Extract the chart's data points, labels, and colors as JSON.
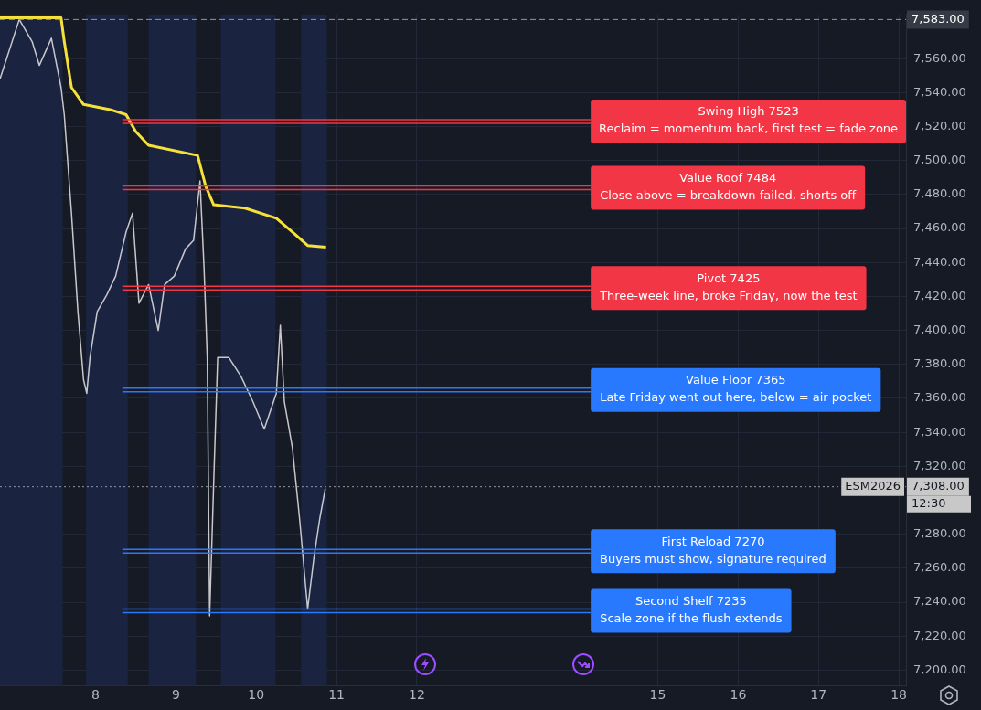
{
  "chart_data": {
    "type": "line",
    "marker": "none",
    "line_style": "solid",
    "grid": true,
    "legend": false,
    "xlim": [
      6.81,
      18.09
    ],
    "xticks": [
      8,
      9,
      10,
      11,
      12,
      15,
      16,
      17,
      18
    ],
    "ylim": [
      7191,
      7586
    ],
    "yticks": [
      {
        "value": 7200,
        "label": "7,200.00"
      },
      {
        "value": 7220,
        "label": "7,220.00"
      },
      {
        "value": 7240,
        "label": "7,240.00"
      },
      {
        "value": 7260,
        "label": "7,260.00"
      },
      {
        "value": 7280,
        "label": "7,280.00"
      },
      {
        "value": 7320,
        "label": "7,320.00"
      },
      {
        "value": 7340,
        "label": "7,340.00"
      },
      {
        "value": 7360,
        "label": "7,360.00"
      },
      {
        "value": 7380,
        "label": "7,380.00"
      },
      {
        "value": 7400,
        "label": "7,400.00"
      },
      {
        "value": 7420,
        "label": "7,420.00"
      },
      {
        "value": 7440,
        "label": "7,440.00"
      },
      {
        "value": 7460,
        "label": "7,460.00"
      },
      {
        "value": 7480,
        "label": "7,480.00"
      },
      {
        "value": 7500,
        "label": "7,500.00"
      },
      {
        "value": 7520,
        "label": "7,520.00"
      },
      {
        "value": 7540,
        "label": "7,540.00"
      },
      {
        "value": 7560,
        "label": "7,560.00"
      }
    ],
    "series": [
      {
        "color": "#c8c8cc",
        "x": [
          6.81,
          7.05,
          7.21,
          7.3,
          7.45,
          7.57,
          7.61,
          7.7,
          7.78,
          7.85,
          7.89,
          7.93,
          8.02,
          8.14,
          8.25,
          8.38,
          8.46,
          8.54,
          8.66,
          8.78,
          8.86,
          8.98,
          9.12,
          9.22,
          9.3,
          9.35,
          9.39,
          9.42,
          9.47,
          9.52,
          9.66,
          9.81,
          9.96,
          10.1,
          10.25,
          10.3,
          10.35,
          10.45,
          10.54,
          10.64,
          10.72,
          10.79,
          10.86
        ],
        "values": [
          7548,
          7583,
          7570,
          7556,
          7572,
          7543,
          7527,
          7469,
          7411,
          7371,
          7363,
          7384,
          7411,
          7421,
          7432,
          7458,
          7469,
          7416,
          7427,
          7400,
          7427,
          7432,
          7448,
          7453,
          7488,
          7437,
          7384,
          7232,
          7310,
          7384,
          7384,
          7373,
          7358,
          7342,
          7363,
          7403,
          7358,
          7331,
          7289,
          7236,
          7267,
          7289,
          7307
        ]
      },
      {
        "color": "#f5e13a",
        "x": [
          6.81,
          7.57,
          7.61,
          7.7,
          7.85,
          8.18,
          8.38,
          8.5,
          8.66,
          9.27,
          9.37,
          9.47,
          9.86,
          10.25,
          10.45,
          10.64,
          10.87
        ],
        "values": [
          7584,
          7584,
          7570,
          7543,
          7533,
          7530,
          7527,
          7517,
          7509,
          7503,
          7485,
          7474,
          7472,
          7466,
          7458,
          7450,
          7449
        ]
      }
    ],
    "bands": [
      {
        "axis": "x",
        "from": 6.81,
        "to": 7.59,
        "color": "#1a2340"
      },
      {
        "axis": "x",
        "from": 7.88,
        "to": 8.4,
        "color": "#1a2340"
      },
      {
        "axis": "x",
        "from": 8.66,
        "to": 9.25,
        "color": "#1a2340"
      },
      {
        "axis": "x",
        "from": 9.56,
        "to": 10.24,
        "color": "#1a2340"
      },
      {
        "axis": "x",
        "from": 10.56,
        "to": 10.88,
        "color": "#1a2340"
      }
    ],
    "ref_lines": [
      {
        "axis": "y",
        "value": 7583,
        "label": "7,583.00",
        "color": "#9598a1",
        "line_style": "dashed"
      },
      {
        "axis": "y",
        "value": 7308,
        "label": "7,308.00",
        "color": "#9598a1",
        "line_style": "dotted"
      },
      {
        "axis": "y",
        "value": 7523,
        "label": "Swing High 7523\nReclaim = momentum back, first test = fade zone",
        "color": "#f23645",
        "line_style": "solid"
      },
      {
        "axis": "y",
        "value": 7484,
        "label": "Value Roof 7484\nClose above = breakdown failed, shorts off",
        "color": "#f23645",
        "line_style": "solid"
      },
      {
        "axis": "y",
        "value": 7425,
        "label": "Pivot 7425\nThree-week line, broke Friday, now the test",
        "color": "#f23645",
        "line_style": "solid"
      },
      {
        "axis": "y",
        "value": 7365,
        "label": "Value Floor 7365\nLate Friday went out here, below = air pocket",
        "color": "#2979ff",
        "line_style": "solid"
      },
      {
        "axis": "y",
        "value": 7270,
        "label": "First Reload 7270\nBuyers must show, signature required",
        "color": "#2979ff",
        "line_style": "solid"
      },
      {
        "axis": "y",
        "value": 7235,
        "label": "Second Shelf 7235\nScale zone if the flush extends",
        "color": "#2979ff",
        "line_style": "solid"
      }
    ],
    "annotations": [
      "ESM2026",
      "12:30"
    ]
  }
}
